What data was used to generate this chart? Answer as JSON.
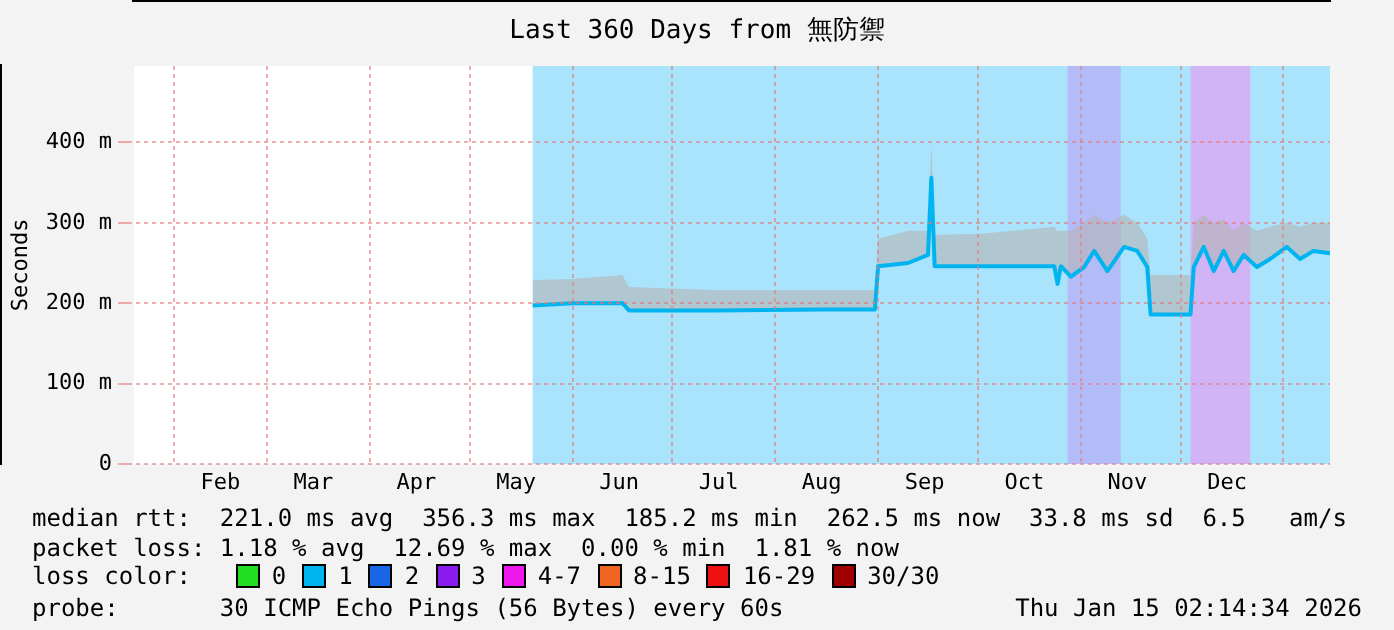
{
  "chart_data": {
    "type": "line",
    "title": "Last 360 Days from 無防禦",
    "ylabel": "Seconds",
    "legend_title": "loss color:",
    "legend": "bottom",
    "grid": true,
    "marker": "none",
    "line_style": "solid",
    "xlim": [
      "2025-01-20",
      "2026-01-15"
    ],
    "xticks": [
      {
        "value": "2025-02-01",
        "label": null
      },
      {
        "value": "2025-02-15",
        "label": "Feb"
      },
      {
        "value": "2025-03-01",
        "label": null
      },
      {
        "value": "2025-03-15",
        "label": "Mar"
      },
      {
        "value": "2025-04-01",
        "label": null
      },
      {
        "value": "2025-04-15",
        "label": "Apr"
      },
      {
        "value": "2025-05-01",
        "label": null
      },
      {
        "value": "2025-05-15",
        "label": "May"
      },
      {
        "value": "2025-06-01",
        "label": null
      },
      {
        "value": "2025-06-15",
        "label": "Jun"
      },
      {
        "value": "2025-07-01",
        "label": null
      },
      {
        "value": "2025-07-15",
        "label": "Jul"
      },
      {
        "value": "2025-08-01",
        "label": null
      },
      {
        "value": "2025-08-15",
        "label": "Aug"
      },
      {
        "value": "2025-09-01",
        "label": null
      },
      {
        "value": "2025-09-15",
        "label": "Sep"
      },
      {
        "value": "2025-10-01",
        "label": null
      },
      {
        "value": "2025-10-15",
        "label": "Oct"
      },
      {
        "value": "2025-11-01",
        "label": null
      },
      {
        "value": "2025-11-15",
        "label": "Nov"
      },
      {
        "value": "2025-12-01",
        "label": null
      },
      {
        "value": "2025-12-15",
        "label": "Dec"
      },
      {
        "value": "2026-01-01",
        "label": null
      }
    ],
    "ylim": [
      0,
      495
    ],
    "yticks": [
      {
        "value": 0,
        "label": "0"
      },
      {
        "value": 100,
        "label": "100 m"
      },
      {
        "value": 200,
        "label": "200 m"
      },
      {
        "value": 300,
        "label": "300 m"
      },
      {
        "value": 400,
        "label": "400 m"
      }
    ],
    "bands": [
      {
        "axis": "x",
        "from": "2025-05-20",
        "to": "2026-01-15",
        "color": "#aae4fc"
      },
      {
        "axis": "x",
        "from": "2025-10-28",
        "to": "2025-11-13",
        "color": "#b4bcf8"
      },
      {
        "axis": "x",
        "from": "2025-12-04",
        "to": "2025-12-22",
        "color": "#d0b4f6"
      }
    ],
    "series": [
      {
        "color": "#00b4f0",
        "x": [
          "2025-05-20",
          "2025-06-01",
          "2025-06-16",
          "2025-06-18",
          "2025-07-15",
          "2025-08-15",
          "2025-08-31",
          "2025-09-01",
          "2025-09-10",
          "2025-09-16",
          "2025-09-17",
          "2025-09-18",
          "2025-10-01",
          "2025-10-24",
          "2025-10-25",
          "2025-10-26",
          "2025-10-29",
          "2025-11-02",
          "2025-11-05",
          "2025-11-09",
          "2025-11-14",
          "2025-11-18",
          "2025-11-21",
          "2025-11-22",
          "2025-12-04",
          "2025-12-05",
          "2025-12-08",
          "2025-12-11",
          "2025-12-14",
          "2025-12-17",
          "2025-12-20",
          "2025-12-24",
          "2025-12-28",
          "2026-01-02",
          "2026-01-06",
          "2026-01-10",
          "2026-01-15"
        ],
        "values": [
          197,
          200,
          200,
          191,
          191,
          192,
          192,
          246,
          250,
          260,
          356,
          246,
          246,
          246,
          224,
          246,
          233,
          245,
          265,
          240,
          270,
          265,
          245,
          186,
          186,
          245,
          270,
          240,
          265,
          240,
          260,
          245,
          255,
          270,
          255,
          265,
          262
        ],
        "lower": [
          197,
          200,
          200,
          191,
          191,
          192,
          192,
          246,
          250,
          260,
          356,
          246,
          246,
          246,
          224,
          246,
          233,
          245,
          265,
          240,
          270,
          265,
          245,
          186,
          186,
          245,
          270,
          240,
          265,
          240,
          260,
          245,
          255,
          270,
          255,
          265,
          262
        ],
        "upper": [
          229,
          230,
          235,
          220,
          216,
          216,
          216,
          280,
          290,
          290,
          400,
          285,
          286,
          295,
          290,
          290,
          290,
          300,
          310,
          300,
          310,
          300,
          280,
          235,
          235,
          300,
          310,
          300,
          305,
          290,
          300,
          290,
          295,
          300,
          295,
          300,
          300
        ]
      },
      {
        "name": "0",
        "color": "#22dd22"
      },
      {
        "name": "1",
        "color": "#00b4f0"
      },
      {
        "name": "2",
        "color": "#1666e6"
      },
      {
        "name": "3",
        "color": "#8a1cee"
      },
      {
        "name": "4-7",
        "color": "#ee18ee"
      },
      {
        "name": "8-15",
        "color": "#ee6622"
      },
      {
        "name": "16-29",
        "color": "#ee1111"
      },
      {
        "name": "30/30",
        "color": "#a00000"
      }
    ],
    "annotations": [
      "median rtt:  221.0 ms avg  356.3 ms max  185.2 ms min  262.5 ms now  33.8 ms sd  6.5   am/s",
      "packet loss: 1.18 % avg  12.69 % max  0.00 % min  1.81 % now",
      "probe:       30 ICMP Echo Pings (56 Bytes) every 60s",
      "Thu Jan 15 02:14:34 2026"
    ]
  }
}
